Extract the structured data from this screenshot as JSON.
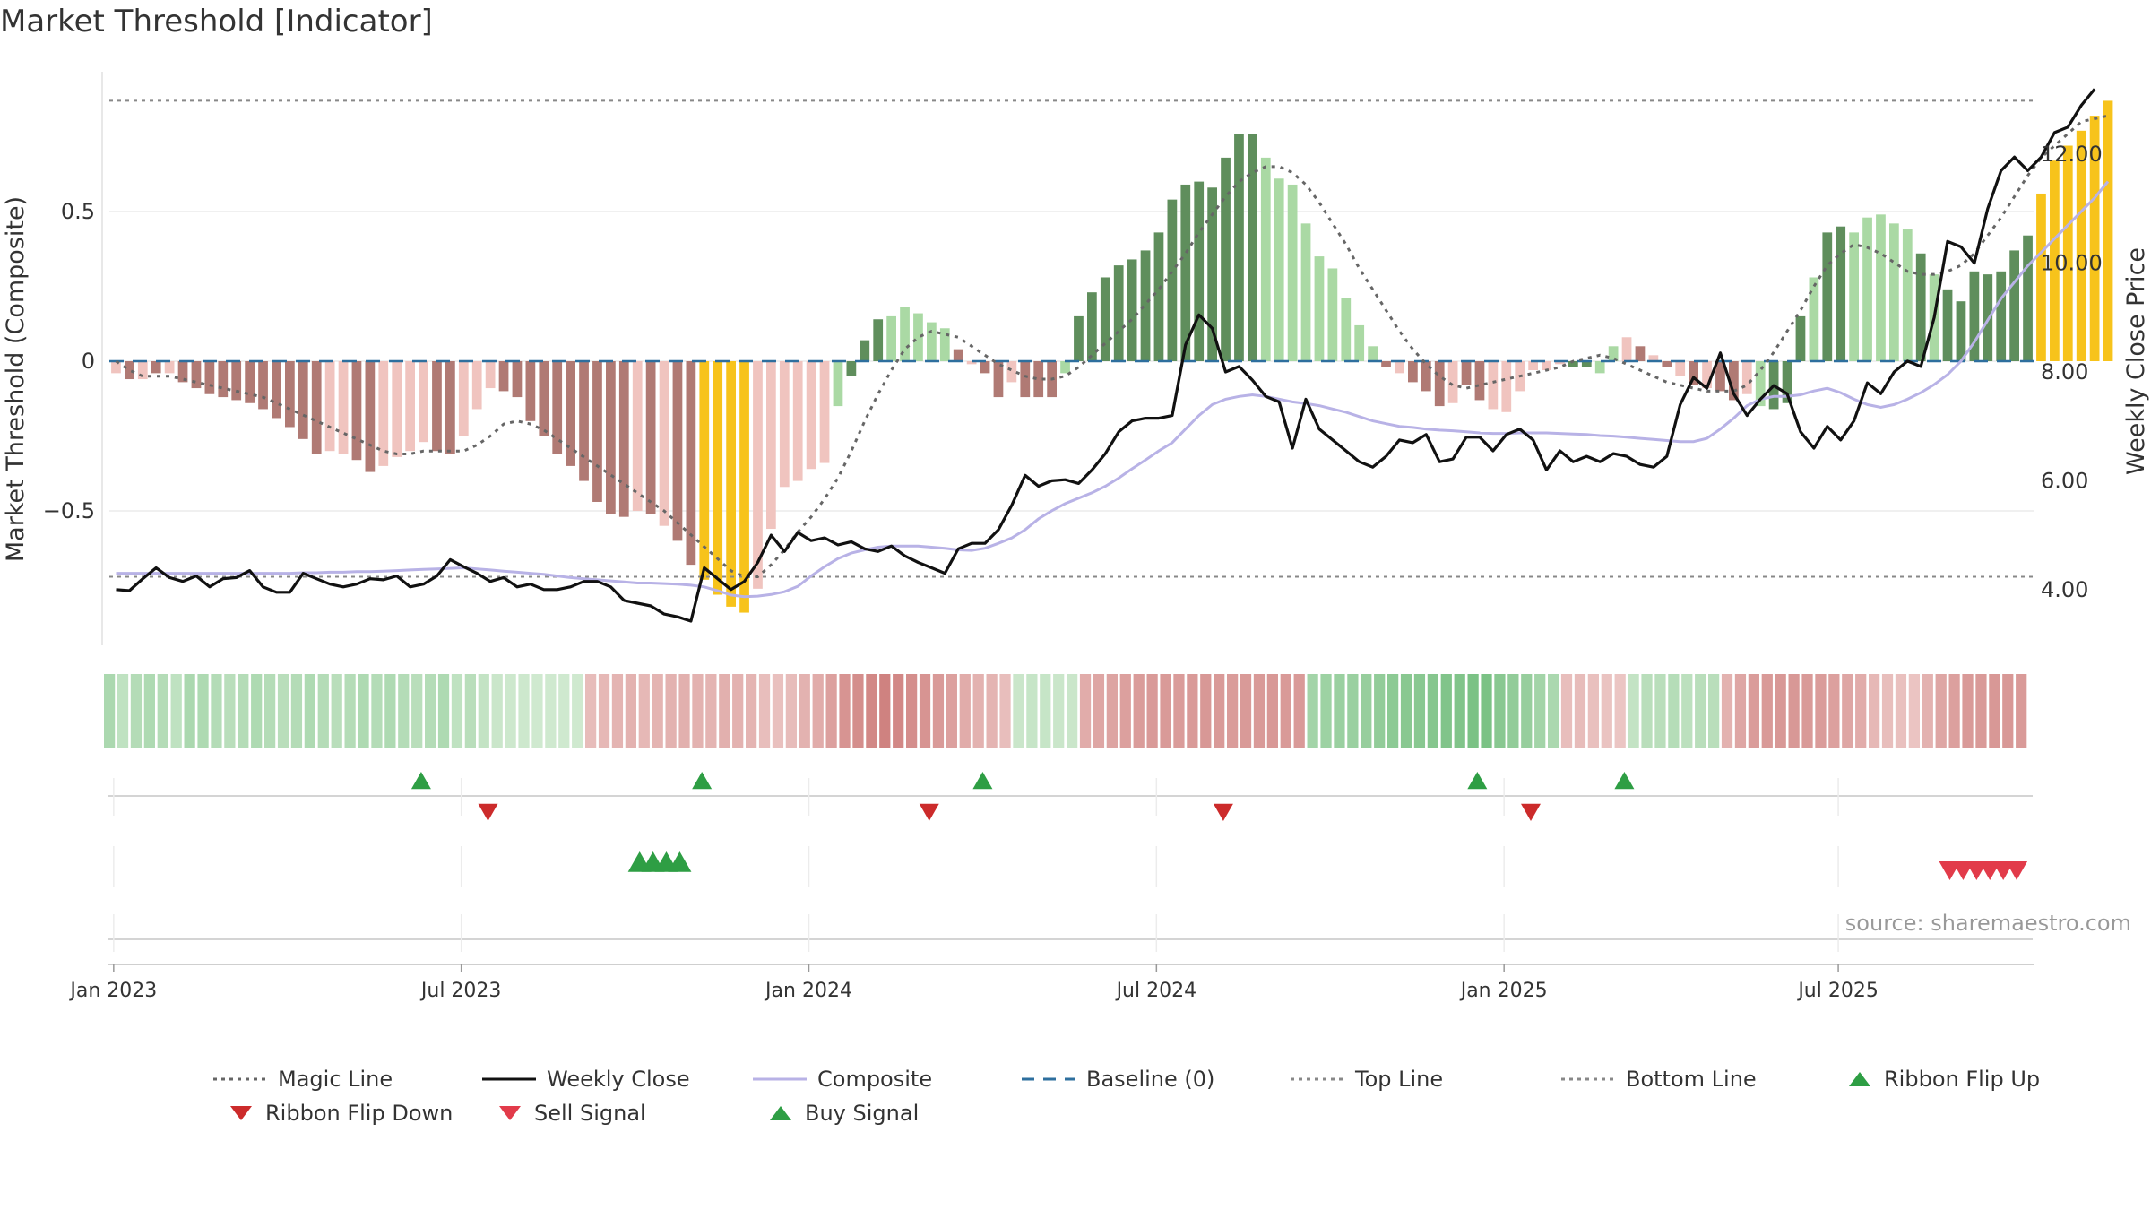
{
  "title": "Market Threshold [Indicator]",
  "source": "source: sharemaestro.com",
  "chart_data": {
    "type": "bar",
    "title": "Market Threshold [Indicator]",
    "y_left_label": "Market Threshold (Composite)",
    "y_right_label": "Weekly Close Price",
    "y_left_ticks": [
      "0.5",
      "0",
      "−0.5"
    ],
    "y_left_tick_values": [
      0.5,
      0,
      -0.5
    ],
    "y_right_ticks": [
      "12.00",
      "10.00",
      "8.00",
      "6.00",
      "4.00"
    ],
    "y_right_tick_values": [
      12,
      10,
      8,
      6,
      4
    ],
    "x_ticks": [
      "Jan 2023",
      "Jul 2023",
      "Jan 2024",
      "Jul 2024",
      "Jan 2025",
      "Jul 2025"
    ],
    "x_tick_weeks": [
      2,
      28,
      54,
      80,
      106,
      131
    ],
    "y_left_lim": [
      -0.95,
      0.95
    ],
    "y_right_lim": [
      0.7,
      16.6
    ],
    "top_line": 0.87,
    "bottom_line": -0.72,
    "grid": true,
    "legend_position": "bottom",
    "weeks": 144,
    "composite": [
      -0.04,
      -0.06,
      -0.06,
      -0.04,
      -0.04,
      -0.07,
      -0.09,
      -0.11,
      -0.12,
      -0.13,
      -0.14,
      -0.16,
      -0.19,
      -0.22,
      -0.26,
      -0.31,
      -0.3,
      -0.31,
      -0.33,
      -0.37,
      -0.35,
      -0.32,
      -0.3,
      -0.27,
      -0.3,
      -0.31,
      -0.25,
      -0.16,
      -0.09,
      -0.1,
      -0.12,
      -0.2,
      -0.25,
      -0.31,
      -0.35,
      -0.4,
      -0.47,
      -0.51,
      -0.52,
      -0.5,
      -0.51,
      -0.55,
      -0.6,
      -0.68,
      -0.73,
      -0.78,
      -0.82,
      -0.84,
      -0.76,
      -0.56,
      -0.42,
      -0.4,
      -0.36,
      -0.34,
      -0.15,
      -0.05,
      0.07,
      0.14,
      0.15,
      0.18,
      0.16,
      0.13,
      0.11,
      0.04,
      -0.01,
      -0.04,
      -0.12,
      -0.07,
      -0.12,
      -0.12,
      -0.12,
      -0.04,
      0.15,
      0.23,
      0.28,
      0.32,
      0.34,
      0.37,
      0.43,
      0.54,
      0.59,
      0.6,
      0.58,
      0.68,
      0.76,
      0.76,
      0.68,
      0.61,
      0.59,
      0.46,
      0.35,
      0.31,
      0.21,
      0.12,
      0.05,
      -0.02,
      -0.04,
      -0.07,
      -0.1,
      -0.15,
      -0.14,
      -0.08,
      -0.13,
      -0.16,
      -0.17,
      -0.1,
      -0.03,
      -0.03,
      -0.01,
      -0.02,
      -0.02,
      -0.04,
      0.05,
      0.08,
      0.05,
      0.02,
      -0.02,
      -0.05,
      -0.08,
      -0.09,
      -0.1,
      -0.13,
      -0.11,
      -0.15,
      -0.16,
      -0.14,
      0.15,
      0.28,
      0.43,
      0.45,
      0.43,
      0.48,
      0.49,
      0.46,
      0.44,
      0.36,
      0.29,
      0.24,
      0.2,
      0.3,
      0.29,
      0.3,
      0.37,
      0.42,
      0.56,
      0.67,
      0.72,
      0.77,
      0.82,
      0.87
    ],
    "bar_colors": [
      "#f0c4bf",
      "#b07a74",
      "#f0c4bf",
      "#b07a74",
      "#f0c4bf",
      "#b07a74",
      "#b07a74",
      "#b07a74",
      "#b07a74",
      "#b07a74",
      "#b07a74",
      "#b07a74",
      "#b07a74",
      "#b07a74",
      "#b07a74",
      "#b07a74",
      "#f0c4bf",
      "#f0c4bf",
      "#b07a74",
      "#b07a74",
      "#f0c4bf",
      "#f0c4bf",
      "#f0c4bf",
      "#f0c4bf",
      "#b07a74",
      "#b07a74",
      "#f0c4bf",
      "#f0c4bf",
      "#f0c4bf",
      "#b07a74",
      "#b07a74",
      "#b07a74",
      "#b07a74",
      "#b07a74",
      "#b07a74",
      "#b07a74",
      "#b07a74",
      "#b07a74",
      "#b07a74",
      "#f0c4bf",
      "#b07a74",
      "#f0c4bf",
      "#b07a74",
      "#b07a74",
      "#f7c31b",
      "#f7c31b",
      "#f7c31b",
      "#f7c31b",
      "#f0c4bf",
      "#f0c4bf",
      "#f0c4bf",
      "#f0c4bf",
      "#f0c4bf",
      "#f0c4bf",
      "#aad9a4",
      "#5f8e5c",
      "#5f8e5c",
      "#5f8e5c",
      "#aad9a4",
      "#aad9a4",
      "#aad9a4",
      "#aad9a4",
      "#aad9a4",
      "#b07a74",
      "#f0c4bf",
      "#b07a74",
      "#b07a74",
      "#f0c4bf",
      "#b07a74",
      "#b07a74",
      "#b07a74",
      "#aad9a4",
      "#5f8e5c",
      "#5f8e5c",
      "#5f8e5c",
      "#5f8e5c",
      "#5f8e5c",
      "#5f8e5c",
      "#5f8e5c",
      "#5f8e5c",
      "#5f8e5c",
      "#5f8e5c",
      "#5f8e5c",
      "#5f8e5c",
      "#5f8e5c",
      "#5f8e5c",
      "#aad9a4",
      "#aad9a4",
      "#aad9a4",
      "#aad9a4",
      "#aad9a4",
      "#aad9a4",
      "#aad9a4",
      "#aad9a4",
      "#aad9a4",
      "#b07a74",
      "#f0c4bf",
      "#b07a74",
      "#b07a74",
      "#b07a74",
      "#f0c4bf",
      "#b07a74",
      "#b07a74",
      "#f0c4bf",
      "#f0c4bf",
      "#f0c4bf",
      "#f0c4bf",
      "#f0c4bf",
      "#f0c4bf",
      "#5f8e5c",
      "#5f8e5c",
      "#aad9a4",
      "#aad9a4",
      "#f0c4bf",
      "#b07a74",
      "#f0c4bf",
      "#b07a74",
      "#f0c4bf",
      "#b07a74",
      "#f0c4bf",
      "#b07a74",
      "#b07a74",
      "#f0c4bf",
      "#aad9a4",
      "#5f8e5c",
      "#5f8e5c",
      "#5f8e5c",
      "#aad9a4",
      "#5f8e5c",
      "#5f8e5c",
      "#aad9a4",
      "#aad9a4",
      "#aad9a4",
      "#aad9a4",
      "#aad9a4",
      "#5f8e5c",
      "#aad9a4",
      "#5f8e5c",
      "#5f8e5c",
      "#5f8e5c",
      "#5f8e5c",
      "#5f8e5c",
      "#5f8e5c",
      "#5f8e5c",
      "#f7c31b",
      "#f7c31b",
      "#f7c31b",
      "#f7c31b",
      "#f7c31b",
      "#f7c31b",
      "#f7c31b"
    ],
    "magic_line": [
      0.0,
      -0.03,
      -0.05,
      -0.05,
      -0.05,
      -0.06,
      -0.07,
      -0.08,
      -0.09,
      -0.1,
      -0.11,
      -0.12,
      -0.14,
      -0.16,
      -0.18,
      -0.2,
      -0.22,
      -0.24,
      -0.26,
      -0.28,
      -0.3,
      -0.31,
      -0.31,
      -0.3,
      -0.3,
      -0.3,
      -0.3,
      -0.28,
      -0.25,
      -0.21,
      -0.2,
      -0.21,
      -0.23,
      -0.26,
      -0.29,
      -0.32,
      -0.35,
      -0.38,
      -0.41,
      -0.44,
      -0.47,
      -0.5,
      -0.54,
      -0.58,
      -0.62,
      -0.66,
      -0.7,
      -0.72,
      -0.72,
      -0.68,
      -0.63,
      -0.57,
      -0.52,
      -0.46,
      -0.39,
      -0.3,
      -0.2,
      -0.11,
      -0.03,
      0.04,
      0.08,
      0.1,
      0.09,
      0.08,
      0.05,
      0.02,
      -0.01,
      -0.03,
      -0.05,
      -0.06,
      -0.06,
      -0.05,
      -0.02,
      0.02,
      0.06,
      0.1,
      0.14,
      0.19,
      0.24,
      0.3,
      0.36,
      0.43,
      0.49,
      0.55,
      0.6,
      0.63,
      0.65,
      0.65,
      0.63,
      0.59,
      0.53,
      0.46,
      0.39,
      0.31,
      0.24,
      0.17,
      0.1,
      0.04,
      -0.01,
      -0.05,
      -0.08,
      -0.09,
      -0.08,
      -0.07,
      -0.06,
      -0.05,
      -0.04,
      -0.03,
      -0.02,
      0.0,
      0.01,
      0.02,
      0.01,
      -0.01,
      -0.03,
      -0.05,
      -0.07,
      -0.08,
      -0.09,
      -0.1,
      -0.1,
      -0.1,
      -0.08,
      -0.03,
      0.03,
      0.1,
      0.17,
      0.25,
      0.32,
      0.36,
      0.39,
      0.38,
      0.36,
      0.33,
      0.3,
      0.29,
      0.29,
      0.3,
      0.32,
      0.36,
      0.42,
      0.48,
      0.55,
      0.62,
      0.68,
      0.72,
      0.76,
      0.8,
      0.81,
      0.82
    ],
    "weekly_close": [
      4.0,
      3.98,
      4.2,
      4.4,
      4.22,
      4.15,
      4.25,
      4.05,
      4.2,
      4.22,
      4.35,
      4.05,
      3.95,
      3.95,
      4.3,
      4.2,
      4.1,
      4.05,
      4.1,
      4.2,
      4.18,
      4.25,
      4.05,
      4.1,
      4.25,
      4.55,
      4.42,
      4.3,
      4.15,
      4.22,
      4.05,
      4.1,
      4.0,
      4.0,
      4.05,
      4.15,
      4.15,
      4.05,
      3.8,
      3.75,
      3.7,
      3.55,
      3.5,
      3.42,
      4.4,
      4.2,
      4.0,
      4.15,
      4.5,
      5.0,
      4.7,
      5.05,
      4.9,
      4.95,
      4.82,
      4.88,
      4.75,
      4.7,
      4.8,
      4.62,
      4.5,
      4.4,
      4.3,
      4.75,
      4.85,
      4.85,
      5.1,
      5.55,
      6.1,
      5.9,
      6.0,
      6.02,
      5.95,
      6.2,
      6.5,
      6.9,
      7.1,
      7.15,
      7.15,
      7.2,
      8.5,
      9.05,
      8.8,
      8.0,
      8.1,
      7.85,
      7.55,
      7.45,
      6.6,
      7.5,
      6.95,
      6.75,
      6.55,
      6.35,
      6.25,
      6.45,
      6.75,
      6.7,
      6.85,
      6.35,
      6.4,
      6.8,
      6.8,
      6.55,
      6.85,
      6.95,
      6.75,
      6.2,
      6.55,
      6.35,
      6.45,
      6.35,
      6.5,
      6.45,
      6.3,
      6.25,
      6.45,
      7.4,
      7.9,
      7.7,
      8.35,
      7.6,
      7.2,
      7.5,
      7.75,
      7.6,
      6.9,
      6.6,
      7.0,
      6.75,
      7.1,
      7.8,
      7.6,
      8.0,
      8.2,
      8.1,
      9.0,
      10.4,
      10.3,
      10.0,
      11.0,
      11.7,
      11.95,
      11.7,
      11.95,
      12.4,
      12.5,
      12.9,
      13.2
    ],
    "composite_line": [
      4.3,
      4.3,
      4.3,
      4.3,
      4.3,
      4.3,
      4.3,
      4.3,
      4.3,
      4.3,
      4.3,
      4.3,
      4.3,
      4.3,
      4.31,
      4.31,
      4.32,
      4.32,
      4.33,
      4.33,
      4.34,
      4.35,
      4.36,
      4.37,
      4.38,
      4.39,
      4.4,
      4.38,
      4.36,
      4.34,
      4.32,
      4.3,
      4.28,
      4.25,
      4.22,
      4.2,
      4.18,
      4.16,
      4.14,
      4.12,
      4.12,
      4.11,
      4.1,
      4.08,
      4.05,
      3.98,
      3.9,
      3.87,
      3.88,
      3.91,
      3.96,
      4.06,
      4.25,
      4.42,
      4.57,
      4.67,
      4.73,
      4.78,
      4.8,
      4.8,
      4.8,
      4.78,
      4.76,
      4.73,
      4.72,
      4.76,
      4.85,
      4.95,
      5.1,
      5.3,
      5.45,
      5.58,
      5.68,
      5.78,
      5.9,
      6.05,
      6.22,
      6.38,
      6.55,
      6.7,
      6.95,
      7.2,
      7.4,
      7.5,
      7.55,
      7.58,
      7.55,
      7.5,
      7.45,
      7.42,
      7.38,
      7.32,
      7.26,
      7.18,
      7.1,
      7.05,
      7.0,
      6.98,
      6.95,
      6.93,
      6.92,
      6.9,
      6.88,
      6.87,
      6.87,
      6.88,
      6.88,
      6.88,
      6.87,
      6.86,
      6.85,
      6.83,
      6.82,
      6.8,
      6.78,
      6.76,
      6.74,
      6.72,
      6.72,
      6.78,
      6.95,
      7.15,
      7.38,
      7.5,
      7.55,
      7.55,
      7.58,
      7.65,
      7.7,
      7.62,
      7.5,
      7.4,
      7.35,
      7.4,
      7.5,
      7.62,
      7.77,
      7.95,
      8.2,
      8.55,
      8.95,
      9.35,
      9.65,
      9.95,
      10.2,
      10.45,
      10.7,
      10.95,
      11.2,
      11.5
    ],
    "ribbon": [
      0.3,
      0.18,
      0.25,
      0.28,
      0.25,
      0.18,
      0.3,
      0.28,
      0.25,
      0.22,
      0.25,
      0.28,
      0.25,
      0.22,
      0.25,
      0.28,
      0.25,
      0.22,
      0.25,
      0.28,
      0.25,
      0.28,
      0.25,
      0.22,
      0.25,
      0.28,
      0.18,
      0.22,
      0.16,
      0.12,
      0.1,
      0.1,
      0.09,
      0.09,
      0.09,
      0.09,
      -0.22,
      -0.25,
      -0.28,
      -0.3,
      -0.25,
      -0.28,
      -0.3,
      -0.32,
      -0.3,
      -0.28,
      -0.32,
      -0.3,
      -0.28,
      -0.2,
      -0.18,
      -0.22,
      -0.3,
      -0.35,
      -0.45,
      -0.55,
      -0.6,
      -0.65,
      -0.7,
      -0.65,
      -0.6,
      -0.55,
      -0.5,
      -0.45,
      -0.35,
      -0.3,
      -0.28,
      -0.2,
      0.12,
      0.14,
      0.14,
      0.12,
      0.12,
      -0.35,
      -0.4,
      -0.42,
      -0.45,
      -0.48,
      -0.5,
      -0.5,
      -0.48,
      -0.5,
      -0.52,
      -0.5,
      -0.48,
      -0.5,
      -0.5,
      -0.52,
      -0.5,
      -0.5,
      0.35,
      0.38,
      0.4,
      0.4,
      0.42,
      0.45,
      0.48,
      0.5,
      0.5,
      0.52,
      0.55,
      0.55,
      0.58,
      0.58,
      0.5,
      0.45,
      0.42,
      0.35,
      0.3,
      -0.2,
      -0.22,
      -0.18,
      -0.16,
      -0.14,
      0.16,
      0.22,
      0.22,
      0.24,
      0.2,
      0.22,
      0.22,
      -0.3,
      -0.4,
      -0.48,
      -0.5,
      -0.52,
      -0.52,
      -0.5,
      -0.48,
      -0.45,
      -0.4,
      -0.35,
      -0.25,
      -0.2,
      -0.18,
      -0.15,
      -0.3,
      -0.4,
      -0.45,
      -0.5,
      -0.5,
      -0.52,
      -0.52,
      -0.5
    ],
    "ribbon_flip_up_weeks": [
      25,
      46,
      67,
      104,
      115
    ],
    "ribbon_flip_down_weeks": [
      30,
      63,
      85,
      108
    ],
    "buy_signal_weeks": [
      40,
      41,
      42,
      43
    ],
    "sell_signal_weeks": [
      138,
      139,
      140,
      141,
      142,
      143
    ]
  },
  "legend": [
    {
      "label": "Magic Line",
      "symbol": "dotted",
      "color": "#666666"
    },
    {
      "label": "Weekly Close",
      "symbol": "solid",
      "color": "#111111"
    },
    {
      "label": "Composite",
      "symbol": "solid",
      "color": "#b8b2e6"
    },
    {
      "label": "Baseline (0)",
      "symbol": "dashed",
      "color": "#2e6f9e"
    },
    {
      "label": "Top Line",
      "symbol": "dotted",
      "color": "#888888"
    },
    {
      "label": "Bottom Line",
      "symbol": "dotted",
      "color": "#888888"
    },
    {
      "label": "Ribbon Flip Up",
      "symbol": "triangle-up",
      "color": "#2e9e44"
    },
    {
      "label": "Ribbon Flip Down",
      "symbol": "triangle-down",
      "color": "#cc2b2b"
    },
    {
      "label": "Sell Signal",
      "symbol": "triangle-down",
      "color": "#e23b4a"
    },
    {
      "label": "Buy Signal",
      "symbol": "triangle-up",
      "color": "#2e9e44"
    }
  ]
}
